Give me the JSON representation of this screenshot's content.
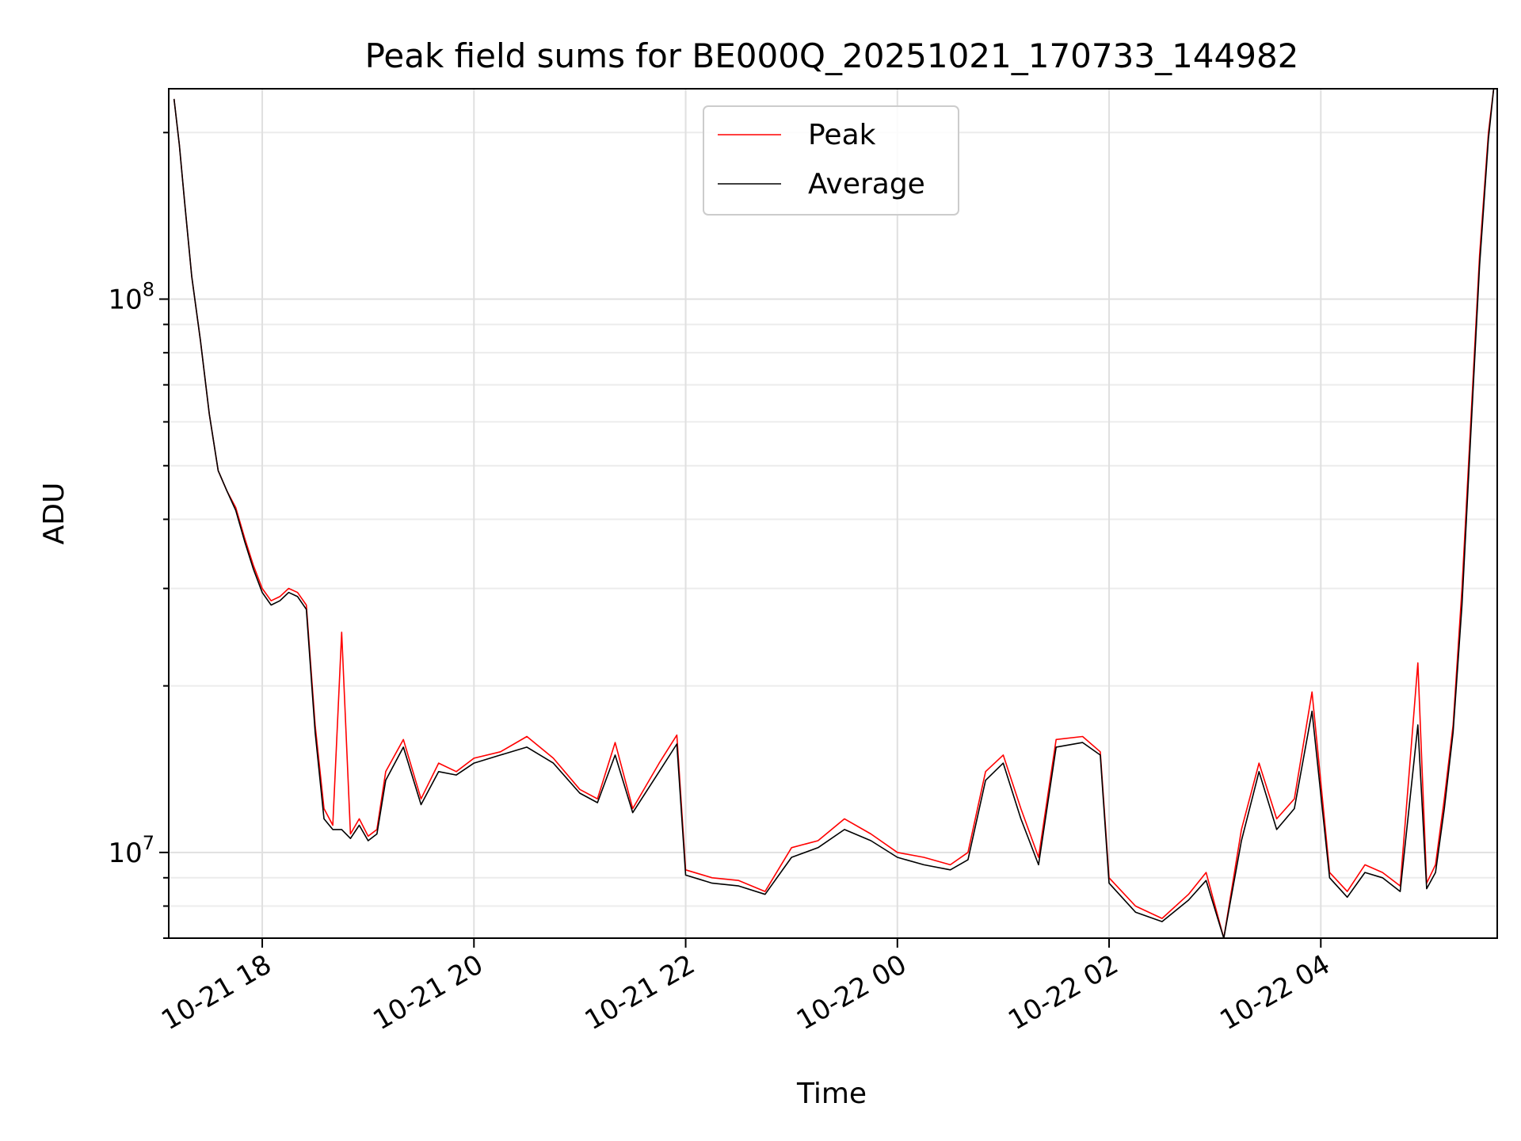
{
  "chart_data": {
    "type": "line",
    "title": "Peak field sums for BE000Q_20251021_170733_144982",
    "xlabel": "Time",
    "ylabel": "ADU",
    "yscale": "log",
    "xlim": [
      "2025-10-21 17:07",
      "2025-10-22 05:40"
    ],
    "ylim": [
      7000000,
      240000000
    ],
    "x_ticks": [
      "10-21 18",
      "10-21 20",
      "10-21 22",
      "10-22 00",
      "10-22 02",
      "10-22 04"
    ],
    "y_ticks": [
      "10^7",
      "10^8"
    ],
    "grid": true,
    "legend_position": "upper center",
    "colors": {
      "peak": "#ff0000",
      "average": "#000000"
    },
    "x": [
      "2025-10-21 17:10",
      "2025-10-21 17:13",
      "2025-10-21 17:16",
      "2025-10-21 17:20",
      "2025-10-21 17:25",
      "2025-10-21 17:30",
      "2025-10-21 17:35",
      "2025-10-21 17:40",
      "2025-10-21 17:45",
      "2025-10-21 17:50",
      "2025-10-21 17:55",
      "2025-10-21 18:00",
      "2025-10-21 18:05",
      "2025-10-21 18:10",
      "2025-10-21 18:15",
      "2025-10-21 18:20",
      "2025-10-21 18:25",
      "2025-10-21 18:30",
      "2025-10-21 18:35",
      "2025-10-21 18:40",
      "2025-10-21 18:45",
      "2025-10-21 18:50",
      "2025-10-21 18:55",
      "2025-10-21 19:00",
      "2025-10-21 19:05",
      "2025-10-21 19:10",
      "2025-10-21 19:20",
      "2025-10-21 19:30",
      "2025-10-21 19:40",
      "2025-10-21 19:50",
      "2025-10-21 20:00",
      "2025-10-21 20:15",
      "2025-10-21 20:30",
      "2025-10-21 20:45",
      "2025-10-21 21:00",
      "2025-10-21 21:10",
      "2025-10-21 21:20",
      "2025-10-21 21:30",
      "2025-10-21 21:45",
      "2025-10-21 21:55",
      "2025-10-21 22:00",
      "2025-10-21 22:15",
      "2025-10-21 22:30",
      "2025-10-21 22:45",
      "2025-10-21 23:00",
      "2025-10-21 23:15",
      "2025-10-21 23:30",
      "2025-10-21 23:45",
      "2025-10-22 00:00",
      "2025-10-22 00:15",
      "2025-10-22 00:30",
      "2025-10-22 00:40",
      "2025-10-22 00:50",
      "2025-10-22 01:00",
      "2025-10-22 01:10",
      "2025-10-22 01:20",
      "2025-10-22 01:30",
      "2025-10-22 01:45",
      "2025-10-22 01:55",
      "2025-10-22 02:00",
      "2025-10-22 02:15",
      "2025-10-22 02:30",
      "2025-10-22 02:45",
      "2025-10-22 02:55",
      "2025-10-22 03:05",
      "2025-10-22 03:15",
      "2025-10-22 03:25",
      "2025-10-22 03:35",
      "2025-10-22 03:45",
      "2025-10-22 03:55",
      "2025-10-22 04:05",
      "2025-10-22 04:15",
      "2025-10-22 04:25",
      "2025-10-22 04:35",
      "2025-10-22 04:45",
      "2025-10-22 04:55",
      "2025-10-22 05:00",
      "2025-10-22 05:05",
      "2025-10-22 05:10",
      "2025-10-22 05:15",
      "2025-10-22 05:20",
      "2025-10-22 05:25",
      "2025-10-22 05:30",
      "2025-10-22 05:35",
      "2025-10-22 05:38"
    ],
    "series": [
      {
        "name": "Peak",
        "values": [
          230000000,
          190000000,
          150000000,
          110000000,
          84000000,
          62000000,
          49000000,
          45000000,
          42000000,
          37000000,
          33000000,
          30000000,
          28500000,
          29000000,
          30000000,
          29500000,
          28000000,
          17000000,
          12000000,
          11200000,
          25000000,
          10800000,
          11500000,
          10700000,
          11000000,
          14000000,
          16000000,
          12500000,
          14500000,
          14000000,
          14800000,
          15200000,
          16200000,
          14800000,
          13000000,
          12500000,
          15800000,
          12000000,
          14500000,
          16300000,
          9300000,
          9000000,
          8900000,
          8500000,
          10200000,
          10500000,
          11500000,
          10800000,
          10000000,
          9800000,
          9500000,
          10000000,
          14000000,
          15000000,
          12000000,
          9800000,
          16000000,
          16200000,
          15200000,
          9000000,
          8000000,
          7600000,
          8400000,
          9200000,
          7000000,
          11000000,
          14500000,
          11500000,
          12500000,
          19500000,
          9200000,
          8500000,
          9500000,
          9200000,
          8700000,
          22000000,
          8800000,
          9500000,
          12500000,
          17000000,
          30000000,
          60000000,
          120000000,
          200000000,
          240000000
        ]
      },
      {
        "name": "Average",
        "values": [
          230000000,
          190000000,
          150000000,
          110000000,
          84000000,
          62000000,
          49000000,
          45000000,
          41500000,
          36500000,
          32500000,
          29500000,
          28000000,
          28500000,
          29500000,
          29000000,
          27500000,
          16500000,
          11500000,
          11000000,
          11000000,
          10600000,
          11200000,
          10500000,
          10800000,
          13500000,
          15500000,
          12200000,
          14000000,
          13800000,
          14500000,
          15000000,
          15500000,
          14500000,
          12800000,
          12300000,
          15000000,
          11800000,
          14000000,
          15700000,
          9100000,
          8800000,
          8700000,
          8400000,
          9800000,
          10200000,
          11000000,
          10500000,
          9800000,
          9500000,
          9300000,
          9700000,
          13500000,
          14500000,
          11500000,
          9500000,
          15500000,
          15800000,
          15000000,
          8800000,
          7800000,
          7500000,
          8200000,
          8900000,
          7000000,
          10500000,
          14000000,
          11000000,
          12000000,
          18000000,
          9000000,
          8300000,
          9200000,
          9000000,
          8500000,
          17000000,
          8600000,
          9200000,
          12000000,
          16500000,
          28000000,
          57000000,
          115000000,
          195000000,
          240000000
        ]
      }
    ]
  }
}
